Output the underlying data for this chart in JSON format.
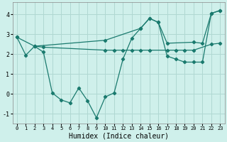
{
  "xlabel": "Humidex (Indice chaleur)",
  "background_color": "#cff0eb",
  "grid_color": "#b0d8d2",
  "line_color": "#1a7a6e",
  "xlim": [
    -0.5,
    23.5
  ],
  "ylim": [
    -1.5,
    4.6
  ],
  "xticks": [
    0,
    1,
    2,
    3,
    4,
    5,
    6,
    7,
    8,
    9,
    10,
    11,
    12,
    13,
    14,
    15,
    16,
    17,
    18,
    19,
    20,
    21,
    22,
    23
  ],
  "yticks": [
    -1,
    0,
    1,
    2,
    3,
    4
  ],
  "line1_x": [
    0,
    1,
    2,
    3,
    4,
    5,
    6,
    7,
    8,
    9,
    10,
    11,
    12,
    13,
    14,
    15,
    16,
    17,
    18,
    19,
    20,
    21,
    22,
    23
  ],
  "line1_y": [
    2.85,
    1.95,
    2.4,
    2.1,
    0.05,
    -0.3,
    -0.45,
    0.3,
    -0.35,
    -1.2,
    -0.15,
    0.05,
    1.75,
    2.8,
    3.3,
    3.8,
    3.6,
    1.9,
    1.75,
    1.6,
    1.6,
    1.6,
    4.05,
    4.2
  ],
  "line2_x": [
    2,
    3,
    10,
    11,
    12,
    13,
    14,
    15,
    17,
    18,
    19,
    20,
    22,
    23
  ],
  "line2_y": [
    2.4,
    2.35,
    2.2,
    2.2,
    2.2,
    2.2,
    2.2,
    2.2,
    2.2,
    2.2,
    2.2,
    2.2,
    2.5,
    2.55
  ],
  "line3_x": [
    0,
    2,
    10,
    14,
    15,
    16,
    17,
    20,
    21,
    22,
    23
  ],
  "line3_y": [
    2.85,
    2.4,
    2.7,
    3.3,
    3.8,
    3.6,
    2.55,
    2.6,
    2.55,
    4.05,
    4.2
  ]
}
